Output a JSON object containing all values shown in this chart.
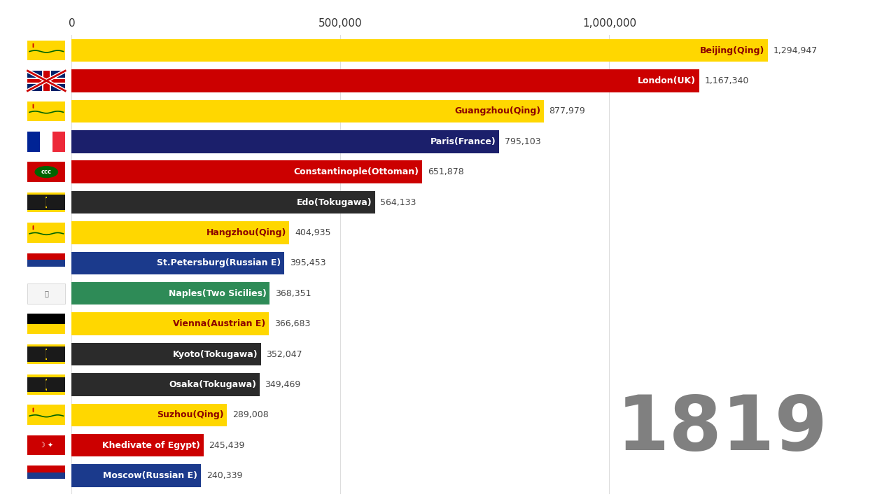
{
  "year": "1819",
  "year_color": "#808080",
  "background_color": "#ffffff",
  "xlim": [
    0,
    1450000
  ],
  "xticks": [
    0,
    500000,
    1000000
  ],
  "xtick_labels": [
    "0",
    "500,000",
    "1,000,000"
  ],
  "bar_height": 0.75,
  "cities": [
    {
      "name": "Beijing(Qing)",
      "value": 1294947,
      "bar_color": "#FFD700",
      "text_color": "#8B0000"
    },
    {
      "name": "London(UK)",
      "value": 1167340,
      "bar_color": "#CC0000",
      "text_color": "#ffffff"
    },
    {
      "name": "Guangzhou(Qing)",
      "value": 877979,
      "bar_color": "#FFD700",
      "text_color": "#8B0000"
    },
    {
      "name": "Paris(France)",
      "value": 795103,
      "bar_color": "#1B1F6B",
      "text_color": "#ffffff"
    },
    {
      "name": "Constantinople(Ottoman)",
      "value": 651878,
      "bar_color": "#CC0000",
      "text_color": "#ffffff"
    },
    {
      "name": "Edo(Tokugawa)",
      "value": 564133,
      "bar_color": "#2b2b2b",
      "text_color": "#ffffff"
    },
    {
      "name": "Hangzhou(Qing)",
      "value": 404935,
      "bar_color": "#FFD700",
      "text_color": "#8B0000"
    },
    {
      "name": "St.Petersburg(Russian E)",
      "value": 395453,
      "bar_color": "#1B3A8C",
      "text_color": "#ffffff"
    },
    {
      "name": "Naples(Two Sicilies)",
      "value": 368351,
      "bar_color": "#2E8B57",
      "text_color": "#ffffff"
    },
    {
      "name": "Vienna(Austrian E)",
      "value": 366683,
      "bar_color": "#FFD700",
      "text_color": "#8B0000"
    },
    {
      "name": "Kyoto(Tokugawa)",
      "value": 352047,
      "bar_color": "#2b2b2b",
      "text_color": "#ffffff"
    },
    {
      "name": "Osaka(Tokugawa)",
      "value": 349469,
      "bar_color": "#2b2b2b",
      "text_color": "#ffffff"
    },
    {
      "name": "Suzhou(Qing)",
      "value": 289008,
      "bar_color": "#FFD700",
      "text_color": "#8B0000"
    },
    {
      "name": "Khedivate of Egypt)",
      "value": 245439,
      "bar_color": "#CC0000",
      "text_color": "#ffffff"
    },
    {
      "name": "Moscow(Russian E)",
      "value": 240339,
      "bar_color": "#1B3A8C",
      "text_color": "#ffffff"
    }
  ],
  "flags": [
    {
      "type": "qing"
    },
    {
      "type": "uk"
    },
    {
      "type": "qing"
    },
    {
      "type": "france"
    },
    {
      "type": "ottoman"
    },
    {
      "type": "tokugawa"
    },
    {
      "type": "qing"
    },
    {
      "type": "russia"
    },
    {
      "type": "naples"
    },
    {
      "type": "austria"
    },
    {
      "type": "tokugawa"
    },
    {
      "type": "tokugawa"
    },
    {
      "type": "qing"
    },
    {
      "type": "egypt"
    },
    {
      "type": "russia"
    }
  ]
}
